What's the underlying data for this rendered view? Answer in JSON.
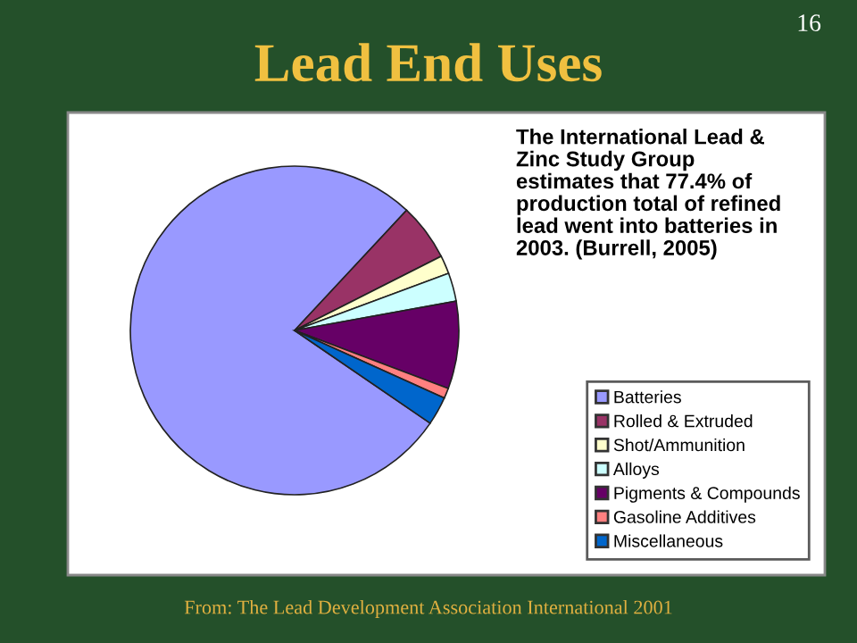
{
  "chart_data": {
    "type": "pie",
    "title": "Lead End Uses",
    "categories": [
      "Batteries",
      "Rolled & Extruded",
      "Shot/Ammunition",
      "Alloys",
      "Pigments & Compounds",
      "Gasoline Additives",
      "Miscellaneous"
    ],
    "values": [
      77.4,
      5.6,
      1.8,
      2.8,
      8.6,
      1.0,
      2.8
    ],
    "colors": [
      "#9999ff",
      "#993366",
      "#ffffcc",
      "#ccffff",
      "#660066",
      "#ff8080",
      "#0066cc"
    ],
    "legend": "bottom right",
    "annotations": [
      "16",
      "The International Lead &\nZinc Study Group\nestimates that 77.4% of\nproduction total of refined\nlead went into batteries in\n2003. (Burrell, 2005)",
      "From: The Lead Development Association International 2001"
    ]
  }
}
